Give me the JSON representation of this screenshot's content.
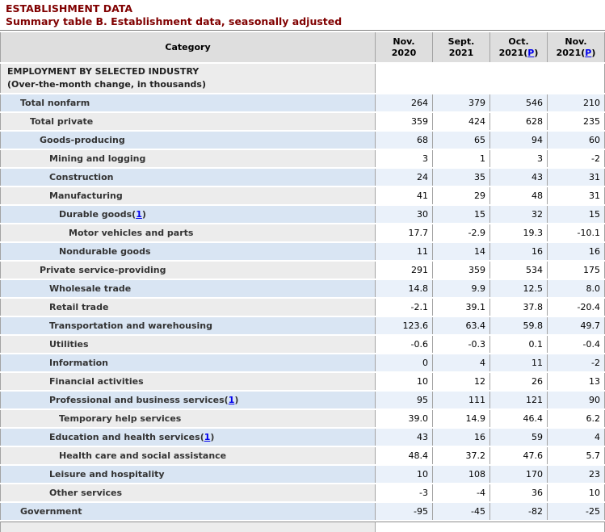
{
  "page": {
    "section_title": "ESTABLISHMENT DATA",
    "table_title": "Summary table B. Establishment data, seasonally adjusted"
  },
  "colors": {
    "title_maroon": "#800000",
    "link_blue": "#0000ee",
    "row_blue_category": "#d9e5f3",
    "row_blue_data": "#eaf1fa",
    "row_gray_category": "#ececec",
    "row_gray_data": "#ffffff",
    "header_gray": "#dedede",
    "border_gray": "#a3a3a3"
  },
  "table": {
    "category_header": "Category",
    "preliminary_link_text": "P",
    "footnote_link_text": "1",
    "columns": [
      {
        "month": "Nov.",
        "year": "2020",
        "preliminary": false
      },
      {
        "month": "Sept.",
        "year": "2021",
        "preliminary": false
      },
      {
        "month": "Oct.",
        "year": "2021",
        "preliminary": true
      },
      {
        "month": "Nov.",
        "year": "2021",
        "preliminary": true
      }
    ],
    "section_row": {
      "line1": "EMPLOYMENT BY SELECTED INDUSTRY",
      "line2": "(Over-the-month change, in thousands)"
    },
    "rows": [
      {
        "label": "Total nonfarm",
        "indent": 1,
        "footnote": false,
        "values": [
          "264",
          "379",
          "546",
          "210"
        ]
      },
      {
        "label": "Total private",
        "indent": 2,
        "footnote": false,
        "values": [
          "359",
          "424",
          "628",
          "235"
        ]
      },
      {
        "label": "Goods-producing",
        "indent": 3,
        "footnote": false,
        "values": [
          "68",
          "65",
          "94",
          "60"
        ]
      },
      {
        "label": "Mining and logging",
        "indent": 4,
        "footnote": false,
        "values": [
          "3",
          "1",
          "3",
          "-2"
        ]
      },
      {
        "label": "Construction",
        "indent": 4,
        "footnote": false,
        "values": [
          "24",
          "35",
          "43",
          "31"
        ]
      },
      {
        "label": "Manufacturing",
        "indent": 4,
        "footnote": false,
        "values": [
          "41",
          "29",
          "48",
          "31"
        ]
      },
      {
        "label": "Durable goods",
        "indent": 5,
        "footnote": true,
        "values": [
          "30",
          "15",
          "32",
          "15"
        ]
      },
      {
        "label": "Motor vehicles and parts",
        "indent": 6,
        "footnote": false,
        "values": [
          "17.7",
          "-2.9",
          "19.3",
          "-10.1"
        ]
      },
      {
        "label": "Nondurable goods",
        "indent": 5,
        "footnote": false,
        "values": [
          "11",
          "14",
          "16",
          "16"
        ]
      },
      {
        "label": "Private service-providing",
        "indent": 3,
        "footnote": false,
        "values": [
          "291",
          "359",
          "534",
          "175"
        ]
      },
      {
        "label": "Wholesale trade",
        "indent": 4,
        "footnote": false,
        "values": [
          "14.8",
          "9.9",
          "12.5",
          "8.0"
        ]
      },
      {
        "label": "Retail trade",
        "indent": 4,
        "footnote": false,
        "values": [
          "-2.1",
          "39.1",
          "37.8",
          "-20.4"
        ]
      },
      {
        "label": "Transportation and warehousing",
        "indent": 4,
        "footnote": false,
        "values": [
          "123.6",
          "63.4",
          "59.8",
          "49.7"
        ]
      },
      {
        "label": "Utilities",
        "indent": 4,
        "footnote": false,
        "values": [
          "-0.6",
          "-0.3",
          "0.1",
          "-0.4"
        ]
      },
      {
        "label": "Information",
        "indent": 4,
        "footnote": false,
        "values": [
          "0",
          "4",
          "11",
          "-2"
        ]
      },
      {
        "label": "Financial activities",
        "indent": 4,
        "footnote": false,
        "values": [
          "10",
          "12",
          "26",
          "13"
        ]
      },
      {
        "label": "Professional and business services",
        "indent": 4,
        "footnote": true,
        "values": [
          "95",
          "111",
          "121",
          "90"
        ]
      },
      {
        "label": "Temporary help services",
        "indent": 5,
        "footnote": false,
        "values": [
          "39.0",
          "14.9",
          "46.4",
          "6.2"
        ]
      },
      {
        "label": "Education and health services",
        "indent": 4,
        "footnote": true,
        "values": [
          "43",
          "16",
          "59",
          "4"
        ]
      },
      {
        "label": "Health care and social assistance",
        "indent": 5,
        "footnote": false,
        "values": [
          "48.4",
          "37.2",
          "47.6",
          "5.7"
        ]
      },
      {
        "label": "Leisure and hospitality",
        "indent": 4,
        "footnote": false,
        "values": [
          "10",
          "108",
          "170",
          "23"
        ]
      },
      {
        "label": "Other services",
        "indent": 4,
        "footnote": false,
        "values": [
          "-3",
          "-4",
          "36",
          "10"
        ]
      },
      {
        "label": "Government",
        "indent": 1,
        "footnote": false,
        "values": [
          "-95",
          "-45",
          "-82",
          "-25"
        ]
      }
    ]
  }
}
